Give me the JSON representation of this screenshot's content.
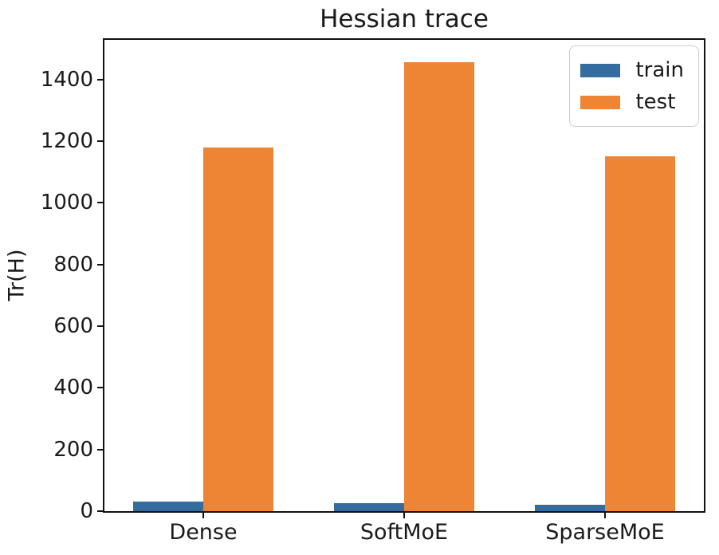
{
  "chart_data": {
    "type": "bar",
    "title": "Hessian trace",
    "xlabel": "",
    "ylabel": "Tr(H)",
    "categories": [
      "Dense",
      "SoftMoE",
      "SparseMoE"
    ],
    "series": [
      {
        "name": "train",
        "values": [
          30,
          25,
          20
        ],
        "color": "#336d9f"
      },
      {
        "name": "test",
        "values": [
          1180,
          1455,
          1150
        ],
        "color": "#ee8535"
      }
    ],
    "ylim": [
      0,
      1528
    ],
    "yticks": [
      0,
      200,
      400,
      600,
      800,
      1000,
      1200,
      1400
    ],
    "grid": false,
    "legend_position": "upper right",
    "legend_labels": [
      "train",
      "test"
    ]
  },
  "colors": {
    "train": "#336d9f",
    "test": "#ee8535",
    "spine": "#111111",
    "text": "#1a1a1a",
    "legend_border": "#cccccc"
  }
}
